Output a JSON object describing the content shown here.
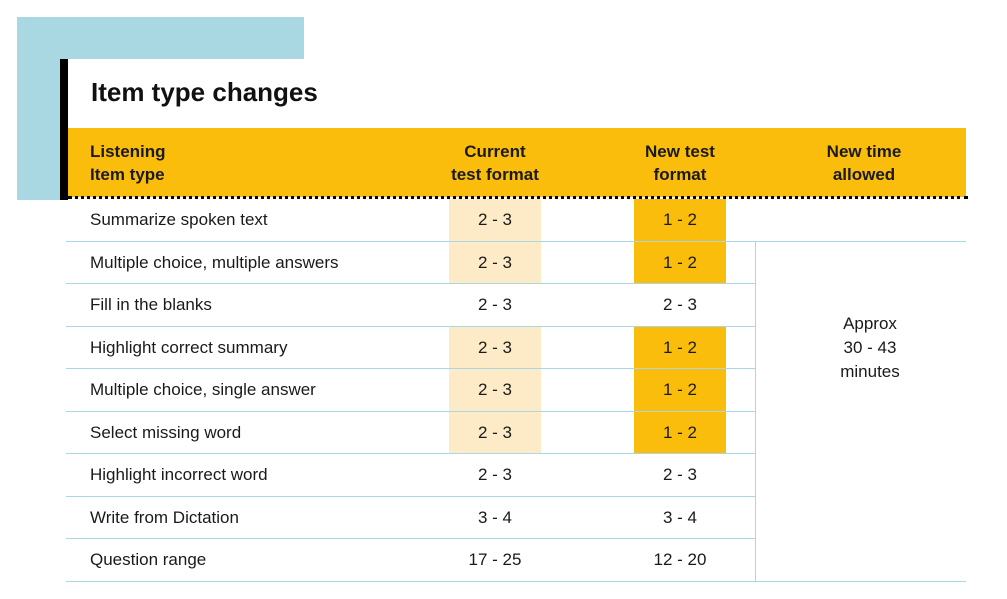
{
  "title": "Item type changes",
  "colors": {
    "accent_blue": "#a9d8e2",
    "header_orange": "#fbbd0b",
    "highlight_light": "#fdebc8",
    "divider": "#a9d8e2"
  },
  "header": {
    "col1": "Listening\nItem type",
    "col2": "Current\ntest format",
    "col3": "New test\nformat",
    "col4": "New time\nallowed"
  },
  "rows": [
    {
      "name": "Summarize spoken text",
      "current": "2 - 3",
      "new": "1 - 2",
      "changed": true
    },
    {
      "name": "Multiple choice, multiple answers",
      "current": "2 - 3",
      "new": "1 - 2",
      "changed": true
    },
    {
      "name": "Fill in the blanks",
      "current": "2 - 3",
      "new": "2 - 3",
      "changed": false
    },
    {
      "name": "Highlight correct summary",
      "current": "2 - 3",
      "new": "1 - 2",
      "changed": true
    },
    {
      "name": "Multiple choice, single answer",
      "current": "2 - 3",
      "new": "1 - 2",
      "changed": true
    },
    {
      "name": "Select missing word",
      "current": "2 - 3",
      "new": "1 - 2",
      "changed": true
    },
    {
      "name": "Highlight incorrect word",
      "current": "2 - 3",
      "new": "2 - 3",
      "changed": false
    },
    {
      "name": "Write from Dictation",
      "current": "3 - 4",
      "new": "3 - 4",
      "changed": false
    },
    {
      "name": "Question range",
      "current": "17 - 25",
      "new": "12 - 20",
      "changed": false
    }
  ],
  "time_note": "Approx\n30 - 43\nminutes"
}
